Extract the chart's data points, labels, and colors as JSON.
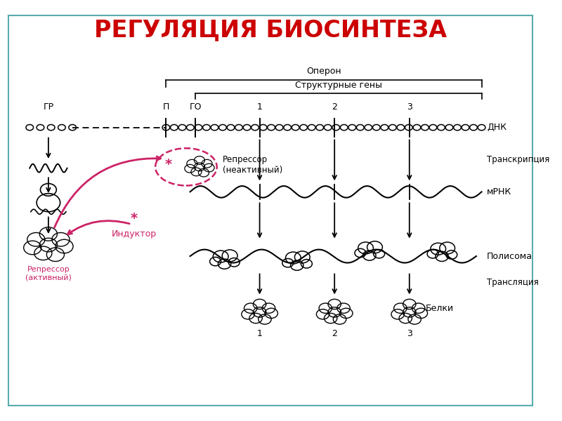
{
  "title": "РЕГУЛЯЦИЯ БИОСИНТЕЗА",
  "title_color": "#cc0000",
  "title_fontsize": 24,
  "bg_color": "#ffffff",
  "border_color": "#5aacac",
  "text_color": "#000000",
  "pink_color": "#cc2266",
  "labels": {
    "operon": "Оперон",
    "struct_genes": "Структурные гены",
    "dna": "ДНК",
    "transcription": "Транскрипция",
    "mrna": "мРНК",
    "polysome": "Полисома",
    "translation": "Трансляция",
    "proteins": "Белки",
    "repressor_inactive": "Репрессор\n(неактивный)",
    "repressor_active": "Репрессор\n(активный)",
    "inductor": "Индуктор",
    "gr": "ГР",
    "p": "П",
    "go": "ГО"
  }
}
